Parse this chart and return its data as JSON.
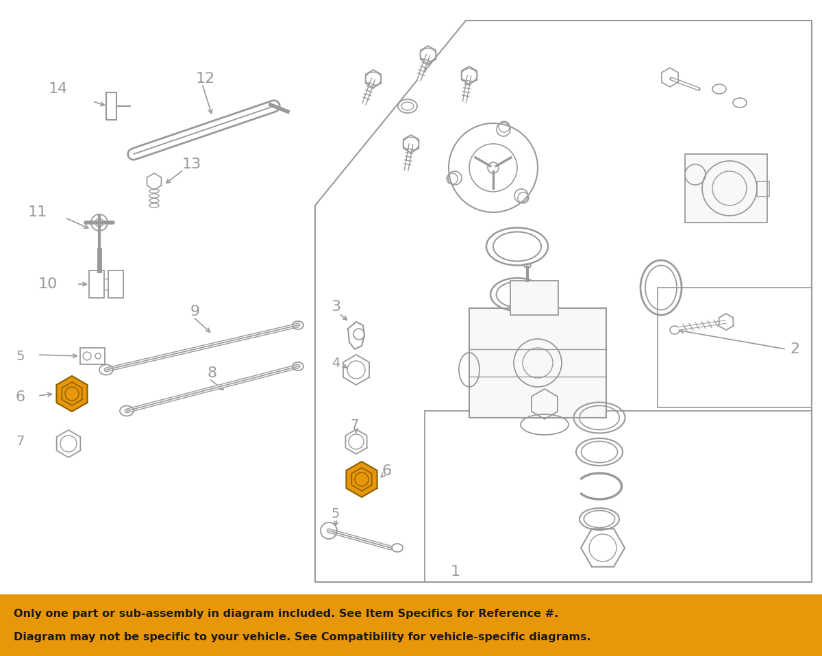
{
  "background_color": "#ffffff",
  "line_color": "#999999",
  "text_color": "#999999",
  "orange_color": "#e8960a",
  "banner_color": "#e8960a",
  "banner_text_color": "#1a1a1a",
  "banner_line1": "Only one part or sub-assembly in diagram included. See Item Specifics for Reference #.",
  "banner_line2": "Diagram may not be specific to your vehicle. See Compatibility for vehicle-specific diagrams.",
  "fig_width": 12.0,
  "fig_height": 9.58,
  "dpi": 100
}
